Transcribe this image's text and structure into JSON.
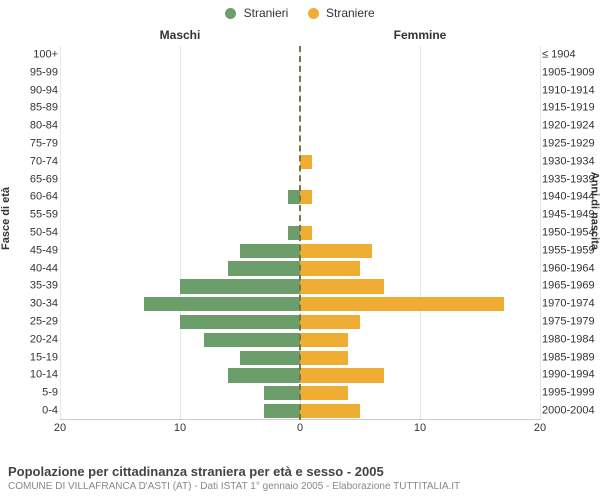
{
  "legend": {
    "male": "Stranieri",
    "female": "Straniere"
  },
  "column_titles": {
    "left": "Maschi",
    "right": "Femmine"
  },
  "axis_titles": {
    "left": "Fasce di età",
    "right": "Anni di nascita"
  },
  "colors": {
    "male_bar": "#6b9e6b",
    "female_bar": "#f0ad33",
    "grid": "#e6e6e6",
    "center_dash": "#757547",
    "background": "#ffffff",
    "text": "#333333",
    "footer_sub": "#888888"
  },
  "x_axis": {
    "max": 20,
    "ticks_left": [
      20,
      10,
      0
    ],
    "ticks_right": [
      0,
      10,
      20
    ]
  },
  "categories": [
    {
      "age": "100+",
      "birth": "≤ 1904",
      "m": 0,
      "f": 0
    },
    {
      "age": "95-99",
      "birth": "1905-1909",
      "m": 0,
      "f": 0
    },
    {
      "age": "90-94",
      "birth": "1910-1914",
      "m": 0,
      "f": 0
    },
    {
      "age": "85-89",
      "birth": "1915-1919",
      "m": 0,
      "f": 0
    },
    {
      "age": "80-84",
      "birth": "1920-1924",
      "m": 0,
      "f": 0
    },
    {
      "age": "75-79",
      "birth": "1925-1929",
      "m": 0,
      "f": 0
    },
    {
      "age": "70-74",
      "birth": "1930-1934",
      "m": 0,
      "f": 1
    },
    {
      "age": "65-69",
      "birth": "1935-1939",
      "m": 0,
      "f": 0
    },
    {
      "age": "60-64",
      "birth": "1940-1944",
      "m": 1,
      "f": 1
    },
    {
      "age": "55-59",
      "birth": "1945-1949",
      "m": 0,
      "f": 0
    },
    {
      "age": "50-54",
      "birth": "1950-1954",
      "m": 1,
      "f": 1
    },
    {
      "age": "45-49",
      "birth": "1955-1959",
      "m": 5,
      "f": 6
    },
    {
      "age": "40-44",
      "birth": "1960-1964",
      "m": 6,
      "f": 5
    },
    {
      "age": "35-39",
      "birth": "1965-1969",
      "m": 10,
      "f": 7
    },
    {
      "age": "30-34",
      "birth": "1970-1974",
      "m": 13,
      "f": 17
    },
    {
      "age": "25-29",
      "birth": "1975-1979",
      "m": 10,
      "f": 5
    },
    {
      "age": "20-24",
      "birth": "1980-1984",
      "m": 8,
      "f": 4
    },
    {
      "age": "15-19",
      "birth": "1985-1989",
      "m": 5,
      "f": 4
    },
    {
      "age": "10-14",
      "birth": "1990-1994",
      "m": 6,
      "f": 7
    },
    {
      "age": "5-9",
      "birth": "1995-1999",
      "m": 3,
      "f": 4
    },
    {
      "age": "0-4",
      "birth": "2000-2004",
      "m": 3,
      "f": 5
    }
  ],
  "footer": {
    "title": "Popolazione per cittadinanza straniera per età e sesso - 2005",
    "subtitle": "COMUNE DI VILLAFRANCA D'ASTI (AT) - Dati ISTAT 1° gennaio 2005 - Elaborazione TUTTITALIA.IT"
  },
  "typography": {
    "font_family": "Arial, Helvetica, sans-serif",
    "legend_fontsize": 12,
    "axis_label_fontsize": 11,
    "axis_title_fontsize": 11,
    "footer_title_fontsize": 13,
    "footer_sub_fontsize": 10
  },
  "type": "population-pyramid"
}
